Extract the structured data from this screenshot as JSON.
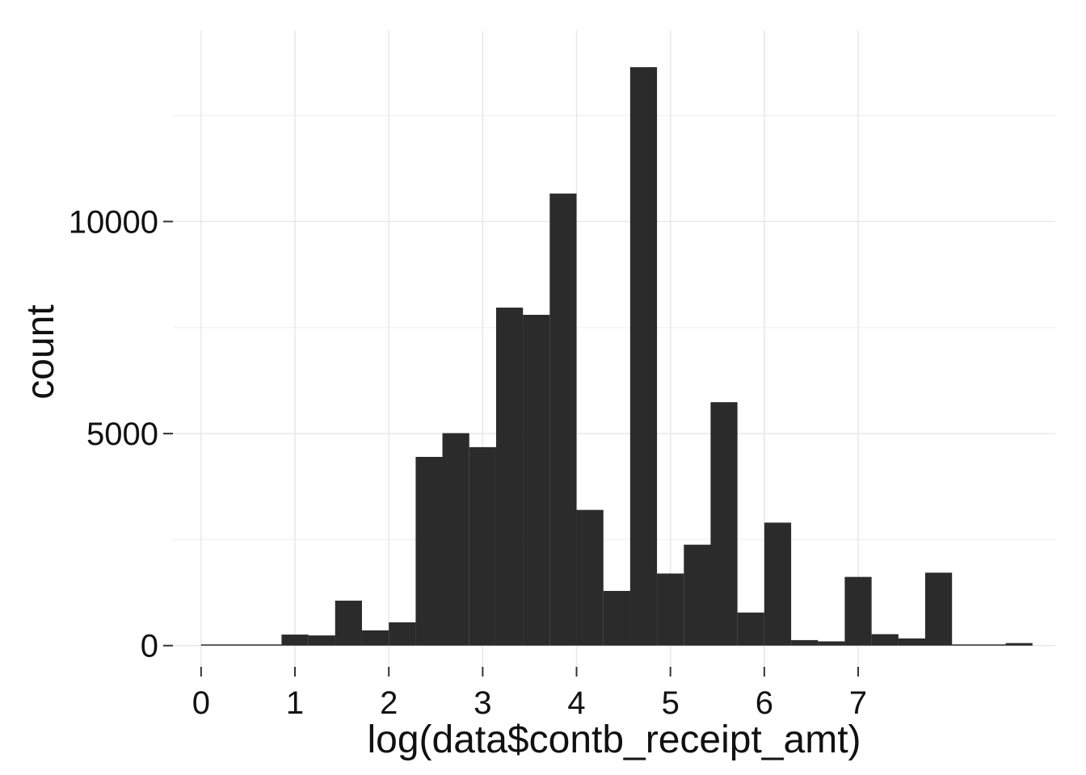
{
  "chart_data": {
    "type": "bar",
    "xlabel": "log(data$contb_receipt_amt)",
    "ylabel": "count",
    "x_ticks": [
      0,
      1,
      2,
      3,
      4,
      5,
      6,
      7
    ],
    "y_ticks": [
      0,
      5000,
      10000
    ],
    "xlim": [
      -0.3,
      9.1
    ],
    "ylim": [
      -500,
      14500
    ],
    "bin_width": 0.286,
    "bin_centers": [
      0.143,
      0.429,
      0.714,
      1.0,
      1.286,
      1.571,
      1.857,
      2.143,
      2.429,
      2.714,
      3.0,
      3.286,
      3.571,
      3.857,
      4.143,
      4.429,
      4.714,
      5.0,
      5.286,
      5.571,
      5.857,
      6.143,
      6.429,
      6.714,
      7.0,
      7.286,
      7.571,
      7.857,
      8.143,
      8.429,
      8.714
    ],
    "values": [
      10,
      0,
      15,
      260,
      240,
      1060,
      360,
      550,
      4450,
      5010,
      4680,
      7970,
      7800,
      10660,
      3200,
      1290,
      13640,
      1700,
      2380,
      5740,
      780,
      2900,
      130,
      100,
      1620,
      270,
      170,
      1720,
      0,
      10,
      60
    ],
    "bar_color": "#2b2b2b",
    "grid": true,
    "grid_color": "#e8e8e8"
  }
}
